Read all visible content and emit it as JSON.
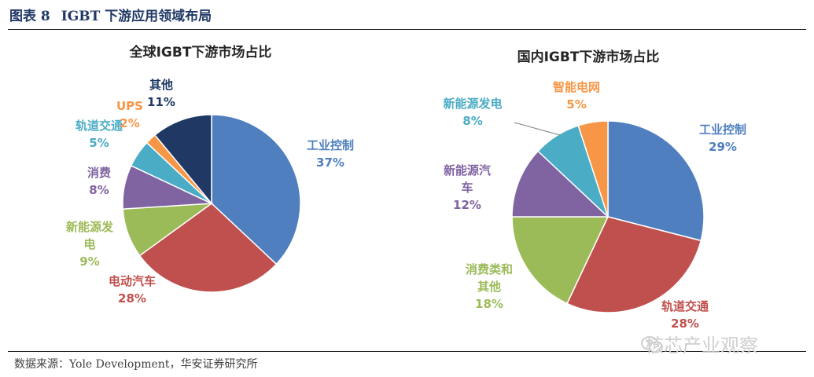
{
  "figure": {
    "number": "图表 8",
    "title": "IGBT 下游应用领域布局",
    "source": "数据来源：Yole Development，华安证券研究所",
    "watermark": "核芯产业观察"
  },
  "chart_data": [
    {
      "type": "pie",
      "title": "全球IGBT下游市场占比",
      "slices": [
        {
          "label": [
            "工业控制"
          ],
          "value_label": "37%",
          "value": 37,
          "color": "#4f7fbf"
        },
        {
          "label": [
            "电动汽车"
          ],
          "value_label": "28%",
          "value": 28,
          "color": "#c0504d"
        },
        {
          "label": [
            "新能源发",
            "电"
          ],
          "value_label": "9%",
          "value": 9,
          "color": "#9bbb59"
        },
        {
          "label": [
            "消费"
          ],
          "value_label": "8%",
          "value": 8,
          "color": "#8064a2"
        },
        {
          "label": [
            "轨道交通"
          ],
          "value_label": "5%",
          "value": 5,
          "color": "#4bacc6"
        },
        {
          "label": [
            "UPS"
          ],
          "value_label": "2%",
          "value": 2,
          "color": "#f79646"
        },
        {
          "label": [
            "其他"
          ],
          "value_label": "11%",
          "value": 11,
          "color": "#1f3864"
        }
      ]
    },
    {
      "type": "pie",
      "title": "国内IGBT下游市场占比",
      "slices": [
        {
          "label": [
            "工业控制"
          ],
          "value_label": "29%",
          "value": 29,
          "color": "#4f7fbf"
        },
        {
          "label": [
            "轨道交通"
          ],
          "value_label": "28%",
          "value": 28,
          "color": "#c0504d"
        },
        {
          "label": [
            "消费类和",
            "其他"
          ],
          "value_label": "18%",
          "value": 18,
          "color": "#9bbb59"
        },
        {
          "label": [
            "新能源汽",
            "车"
          ],
          "value_label": "12%",
          "value": 12,
          "color": "#8064a2"
        },
        {
          "label": [
            "新能源发电"
          ],
          "value_label": "8%",
          "value": 8,
          "color": "#4bacc6"
        },
        {
          "label": [
            "智能电网"
          ],
          "value_label": "5%",
          "value": 5,
          "color": "#f79646"
        }
      ]
    }
  ]
}
